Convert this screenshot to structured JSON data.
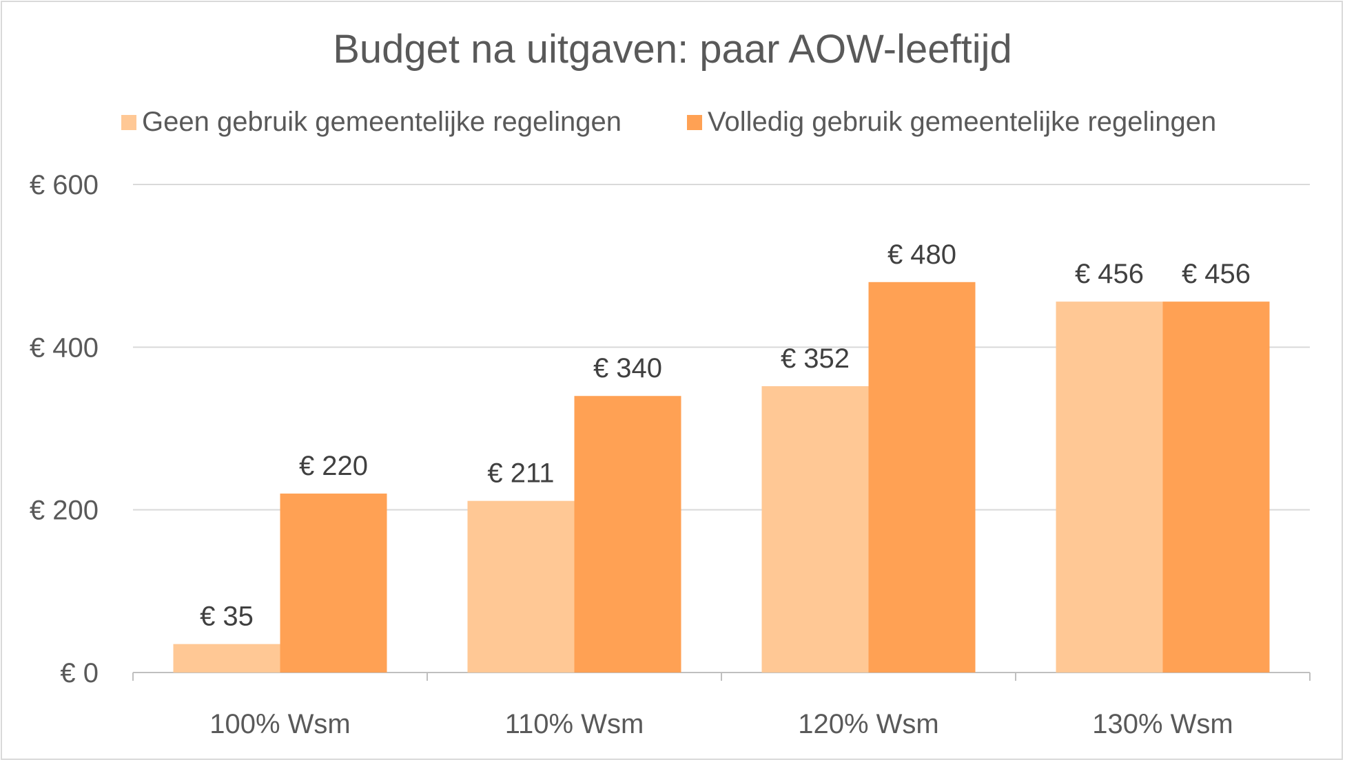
{
  "chart_data": {
    "type": "bar",
    "title": "Budget na uitgaven: paar AOW-leeftijd",
    "categories": [
      "100% Wsm",
      "110% Wsm",
      "120% Wsm",
      "130% Wsm"
    ],
    "series": [
      {
        "name": "Geen gebruik gemeentelijke regelingen",
        "values": [
          35,
          211,
          352,
          456
        ],
        "labels": [
          "€ 35",
          "€ 211",
          "€ 352",
          "€ 456"
        ],
        "color": "#ffc895"
      },
      {
        "name": "Volledig gebruik gemeentelijke regelingen",
        "values": [
          220,
          340,
          480,
          456
        ],
        "labels": [
          "€ 220",
          "€ 340",
          "€ 480",
          "€ 456"
        ],
        "color": "#ffa154"
      }
    ],
    "yticks": [
      0,
      200,
      400,
      600
    ],
    "ytick_labels": [
      "€ 0",
      "€ 200",
      "€ 400",
      "€ 600"
    ],
    "ylim": [
      0,
      600
    ],
    "xlabel": "",
    "ylabel": "",
    "grid": true,
    "legend_position": "top"
  }
}
